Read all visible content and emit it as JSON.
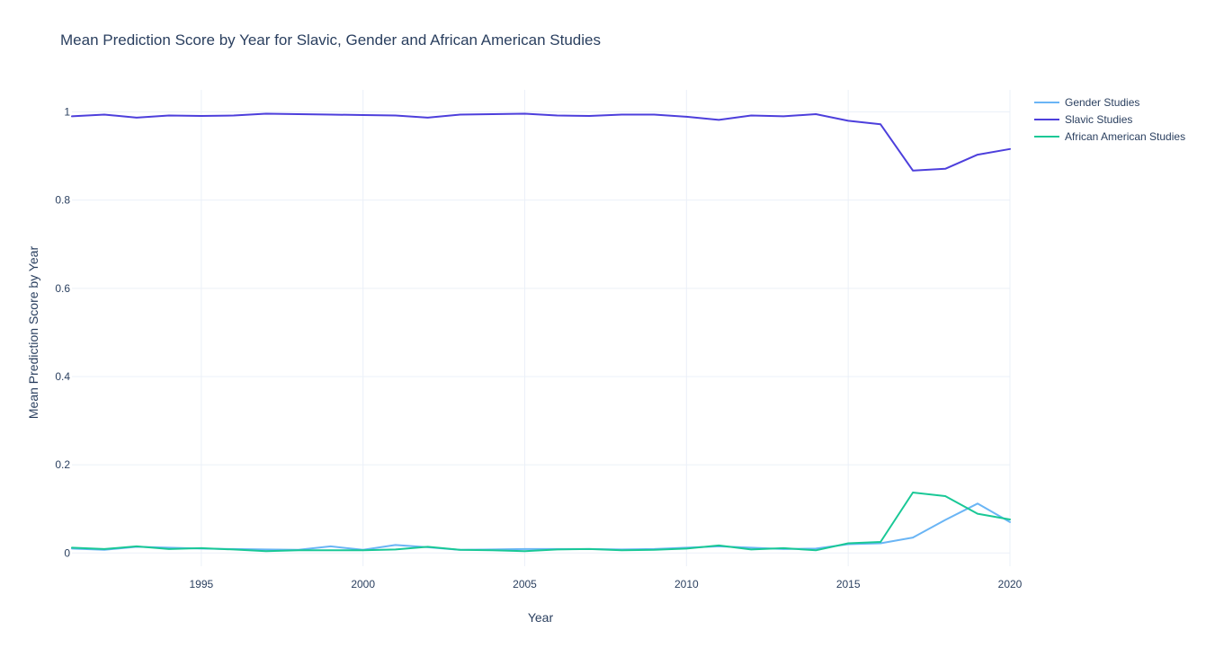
{
  "chart_data": {
    "type": "line",
    "title": "Mean Prediction Score by Year for Slavic, Gender and African American Studies",
    "xlabel": "Year",
    "ylabel": "Mean Prediction Score by Year",
    "xlim": [
      1991,
      2020
    ],
    "ylim": [
      -0.03,
      1.05
    ],
    "xticks": [
      1995,
      2000,
      2005,
      2010,
      2015,
      2020
    ],
    "yticks": [
      0,
      0.2,
      0.4,
      0.6,
      0.8,
      1
    ],
    "ytick_labels": [
      "0",
      "0.2",
      "0.4",
      "0.6",
      "0.8",
      "1"
    ],
    "grid": true,
    "legend_position": "top-right",
    "x": [
      1991,
      1992,
      1993,
      1994,
      1995,
      1996,
      1997,
      1998,
      1999,
      2000,
      2001,
      2002,
      2003,
      2004,
      2005,
      2006,
      2007,
      2008,
      2009,
      2010,
      2011,
      2012,
      2013,
      2014,
      2015,
      2016,
      2017,
      2018,
      2019,
      2020
    ],
    "series": [
      {
        "name": "Gender Studies",
        "color": "#6ab5f5",
        "values": [
          0.01,
          0.007,
          0.014,
          0.012,
          0.01,
          0.009,
          0.008,
          0.007,
          0.015,
          0.007,
          0.018,
          0.013,
          0.007,
          0.008,
          0.009,
          0.009,
          0.009,
          0.008,
          0.009,
          0.012,
          0.015,
          0.012,
          0.009,
          0.01,
          0.02,
          0.022,
          0.035,
          0.075,
          0.112,
          0.07
        ]
      },
      {
        "name": "Slavic Studies",
        "color": "#4d3fdc",
        "values": [
          0.99,
          0.994,
          0.987,
          0.992,
          0.991,
          0.992,
          0.996,
          0.995,
          0.994,
          0.993,
          0.992,
          0.987,
          0.994,
          0.995,
          0.996,
          0.992,
          0.991,
          0.994,
          0.994,
          0.989,
          0.982,
          0.992,
          0.99,
          0.995,
          0.98,
          0.972,
          0.867,
          0.871,
          0.903,
          0.916
        ]
      },
      {
        "name": "African American Studies",
        "color": "#19c896",
        "values": [
          0.012,
          0.009,
          0.015,
          0.009,
          0.011,
          0.008,
          0.004,
          0.006,
          0.006,
          0.006,
          0.008,
          0.014,
          0.007,
          0.006,
          0.004,
          0.008,
          0.009,
          0.006,
          0.007,
          0.01,
          0.017,
          0.008,
          0.011,
          0.006,
          0.022,
          0.025,
          0.137,
          0.129,
          0.089,
          0.076
        ]
      }
    ]
  }
}
